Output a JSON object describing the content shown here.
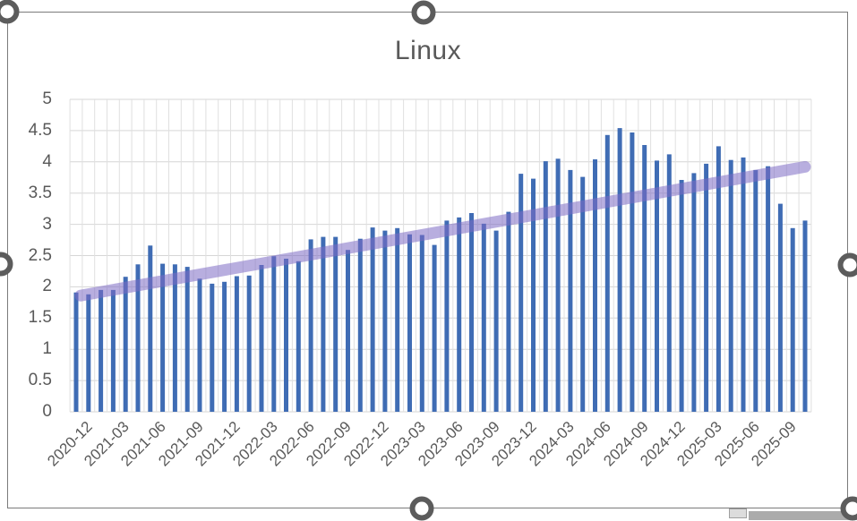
{
  "chart_data": {
    "type": "bar",
    "title": "Linux",
    "xlabel": "",
    "ylabel": "",
    "ylim": [
      0,
      5
    ],
    "y_tick_labels": [
      "0",
      "0.5",
      "1",
      "1.5",
      "2",
      "2.5",
      "3",
      "3.5",
      "4",
      "4.5",
      "5"
    ],
    "y_tick_values": [
      0,
      0.5,
      1,
      1.5,
      2,
      2.5,
      3,
      3.5,
      4,
      4.5,
      5
    ],
    "x_tick_labels": [
      "2020-12",
      "2021-03",
      "2021-06",
      "2021-09",
      "2021-12",
      "2022-03",
      "2022-06",
      "2022-09",
      "2022-12",
      "2023-03",
      "2023-06",
      "2023-09",
      "2023-12",
      "2024-03",
      "2024-06",
      "2024-09",
      "2024-12",
      "2025-03",
      "2025-06",
      "2025-09"
    ],
    "x_tick_every_n_bars": 3,
    "categories": [
      "2020-12",
      "2021-01",
      "2021-02",
      "2021-03",
      "2021-04",
      "2021-05",
      "2021-06",
      "2021-07",
      "2021-08",
      "2021-09",
      "2021-10",
      "2021-11",
      "2021-12",
      "2022-01",
      "2022-02",
      "2022-03",
      "2022-04",
      "2022-05",
      "2022-06",
      "2022-07",
      "2022-08",
      "2022-09",
      "2022-10",
      "2022-11",
      "2022-12",
      "2023-01",
      "2023-02",
      "2023-03",
      "2023-04",
      "2023-05",
      "2023-06",
      "2023-07",
      "2023-08",
      "2023-09",
      "2023-10",
      "2023-11",
      "2023-12",
      "2024-01",
      "2024-02",
      "2024-03",
      "2024-04",
      "2024-05",
      "2024-06",
      "2024-07",
      "2024-08",
      "2024-09",
      "2024-10",
      "2024-11",
      "2024-12",
      "2025-01",
      "2025-02",
      "2025-03",
      "2025-04",
      "2025-05",
      "2025-06",
      "2025-07",
      "2025-08",
      "2025-09",
      "2025-10",
      "2025-11"
    ],
    "values": [
      1.91,
      1.88,
      1.95,
      1.95,
      2.16,
      2.36,
      2.66,
      2.37,
      2.36,
      2.32,
      2.13,
      2.05,
      2.08,
      2.17,
      2.18,
      2.35,
      2.49,
      2.45,
      2.41,
      2.76,
      2.8,
      2.8,
      2.59,
      2.77,
      2.95,
      2.9,
      2.94,
      2.84,
      2.83,
      2.67,
      3.06,
      3.11,
      3.18,
      3.01,
      2.9,
      3.2,
      3.81,
      3.73,
      4.01,
      4.05,
      3.87,
      3.76,
      4.04,
      4.43,
      4.54,
      4.47,
      4.27,
      4.02,
      4.12,
      3.71,
      3.82,
      3.97,
      4.25,
      4.03,
      4.07,
      3.87,
      3.93,
      3.33,
      2.94,
      3.06
    ],
    "trendline": {
      "type": "linear",
      "start_value": 1.86,
      "end_value": 3.92,
      "color": "#7e6bc4",
      "opacity": 0.55
    },
    "legend": "none",
    "grid": "horizontal-and-vertical",
    "colors": {
      "bar": "#3f6cb4",
      "text": "#595959",
      "gridline_h": "#d6d6d6",
      "gridline_v": "#e0e0e0",
      "selection_chrome": "#5c5c5c",
      "border": "#7b7b7b"
    }
  }
}
